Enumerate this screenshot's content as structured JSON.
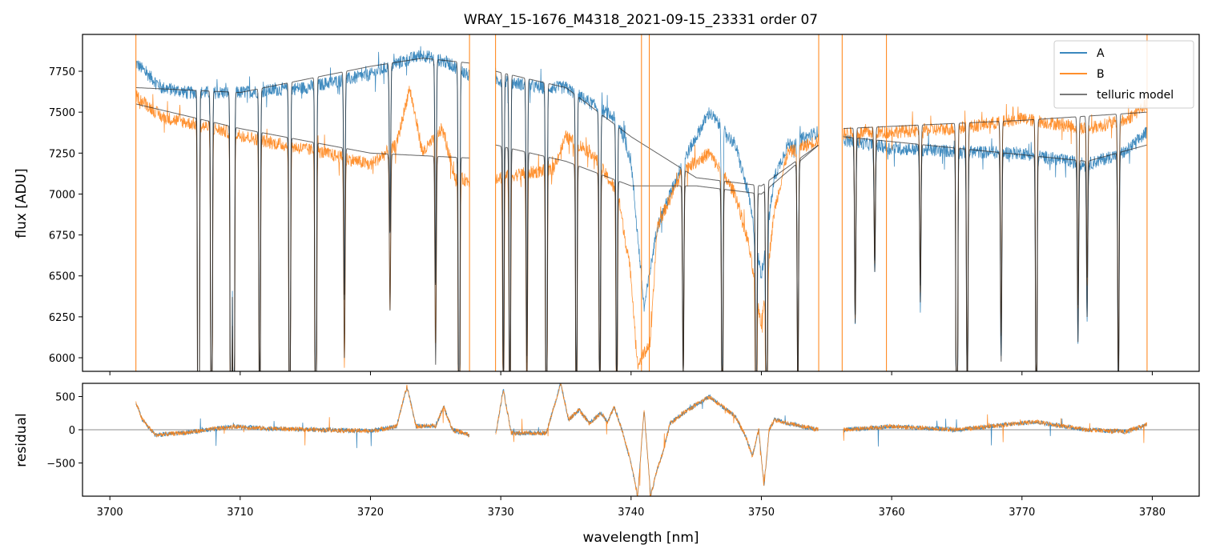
{
  "chart_data": {
    "type": "line",
    "title": "WRAY_15-1676_M4318_2021-09-15_23331  order 07",
    "xlabel": "wavelength [nm]",
    "xlim": [
      3697.9,
      3783.6
    ],
    "xticks": [
      3700,
      3710,
      3720,
      3730,
      3740,
      3750,
      3760,
      3770,
      3780
    ],
    "colors": {
      "A": "#1f77b4",
      "B": "#ff7f0e",
      "model": "#555555",
      "zero": "#666666"
    },
    "legend": {
      "placement": "top-right",
      "entries": [
        "A",
        "B",
        "telluric model"
      ]
    },
    "top_panel": {
      "ylabel": "flux [ADU]",
      "ylim": [
        5917,
        7975
      ],
      "yticks": [
        6000,
        6250,
        6500,
        6750,
        7000,
        7250,
        7500,
        7750
      ]
    },
    "bottom_panel": {
      "ylabel": "residual",
      "ylim": [
        -1000,
        699
      ],
      "yticks": [
        -500,
        0,
        500
      ],
      "ytick_labels": [
        "−500",
        "0",
        "500"
      ]
    },
    "segments": [
      [
        3702.0,
        3727.6
      ],
      [
        3729.6,
        3754.4
      ],
      [
        3756.3,
        3779.6
      ]
    ],
    "series": [
      {
        "name": "A",
        "continuum": [
          [
            3702,
            7800
          ],
          [
            3704,
            7650
          ],
          [
            3706,
            7620
          ],
          [
            3710,
            7620
          ],
          [
            3715,
            7650
          ],
          [
            3720,
            7730
          ],
          [
            3722,
            7800
          ],
          [
            3724,
            7850
          ],
          [
            3726,
            7800
          ],
          [
            3727.6,
            7720
          ],
          [
            3729.6,
            7700
          ],
          [
            3733,
            7650
          ],
          [
            3735,
            7650
          ],
          [
            3737,
            7550
          ],
          [
            3739,
            7450
          ],
          [
            3740,
            7200
          ],
          [
            3741,
            6300
          ],
          [
            3742,
            6800
          ],
          [
            3744,
            7200
          ],
          [
            3746,
            7500
          ],
          [
            3748,
            7300
          ],
          [
            3749,
            7000
          ],
          [
            3750,
            6500
          ],
          [
            3751,
            7100
          ],
          [
            3752,
            7300
          ],
          [
            3754.4,
            7380
          ],
          [
            3756.3,
            7330
          ],
          [
            3760,
            7280
          ],
          [
            3765,
            7260
          ],
          [
            3770,
            7250
          ],
          [
            3775,
            7180
          ],
          [
            3778,
            7260
          ],
          [
            3779.6,
            7380
          ]
        ]
      },
      {
        "name": "B",
        "continuum": [
          [
            3702,
            7600
          ],
          [
            3704,
            7470
          ],
          [
            3708,
            7400
          ],
          [
            3712,
            7320
          ],
          [
            3716,
            7260
          ],
          [
            3720,
            7180
          ],
          [
            3722,
            7300
          ],
          [
            3723,
            7650
          ],
          [
            3724,
            7250
          ],
          [
            3725.5,
            7400
          ],
          [
            3726.5,
            7100
          ],
          [
            3727.6,
            7080
          ],
          [
            3729.6,
            7100
          ],
          [
            3734,
            7150
          ],
          [
            3735,
            7350
          ],
          [
            3737,
            7250
          ],
          [
            3739,
            7000
          ],
          [
            3740,
            6500
          ],
          [
            3740.5,
            5950
          ],
          [
            3741.5,
            6100
          ],
          [
            3742,
            6800
          ],
          [
            3744,
            7150
          ],
          [
            3746,
            7250
          ],
          [
            3748,
            7000
          ],
          [
            3749,
            6700
          ],
          [
            3750,
            6200
          ],
          [
            3751,
            6900
          ],
          [
            3752,
            7250
          ],
          [
            3754.4,
            7330
          ],
          [
            3756.3,
            7370
          ],
          [
            3760,
            7380
          ],
          [
            3765,
            7400
          ],
          [
            3770,
            7460
          ],
          [
            3775,
            7400
          ],
          [
            3778,
            7450
          ],
          [
            3779.6,
            7550
          ]
        ]
      },
      {
        "name": "telluric model A",
        "continuum": [
          [
            3702,
            7650
          ],
          [
            3710,
            7620
          ],
          [
            3720,
            7780
          ],
          [
            3724,
            7830
          ],
          [
            3727.6,
            7800
          ],
          [
            3729.6,
            7750
          ],
          [
            3735,
            7650
          ],
          [
            3740,
            7350
          ],
          [
            3745,
            7100
          ],
          [
            3750,
            7050
          ],
          [
            3754.4,
            7300
          ],
          [
            3756.3,
            7350
          ],
          [
            3765,
            7280
          ],
          [
            3775,
            7200
          ],
          [
            3779.6,
            7300
          ]
        ]
      },
      {
        "name": "telluric model B",
        "continuum": [
          [
            3702,
            7550
          ],
          [
            3710,
            7400
          ],
          [
            3720,
            7250
          ],
          [
            3727.6,
            7220
          ],
          [
            3729.6,
            7300
          ],
          [
            3735,
            7200
          ],
          [
            3740,
            7050
          ],
          [
            3745,
            7050
          ],
          [
            3750,
            7000
          ],
          [
            3754.4,
            7300
          ],
          [
            3756.3,
            7400
          ],
          [
            3770,
            7450
          ],
          [
            3779.6,
            7500
          ]
        ]
      }
    ],
    "telluric_lines": [
      [
        3706.8,
        0.35
      ],
      [
        3707.8,
        0.25
      ],
      [
        3709.3,
        0.3
      ],
      [
        3709.5,
        0.3
      ],
      [
        3711.5,
        0.15
      ],
      [
        3713.8,
        0.2
      ],
      [
        3715.8,
        0.25
      ],
      [
        3718,
        0.08
      ],
      [
        3721.5,
        0.06
      ],
      [
        3725,
        0.08
      ],
      [
        3726.8,
        0.25
      ],
      [
        3730.2,
        0.12
      ],
      [
        3730.7,
        0.15
      ],
      [
        3732,
        0.1
      ],
      [
        3733.5,
        0.22
      ],
      [
        3735.8,
        0.15
      ],
      [
        3737.6,
        0.12
      ],
      [
        3738.9,
        0.12
      ],
      [
        3744,
        0.08
      ],
      [
        3747,
        0.12
      ],
      [
        3749.6,
        0.15
      ],
      [
        3750.4,
        0.2
      ],
      [
        3752.8,
        0.1
      ],
      [
        3757.2,
        0.07
      ],
      [
        3758.7,
        0.05
      ],
      [
        3762.2,
        0.06
      ],
      [
        3765,
        0.25
      ],
      [
        3765.8,
        0.12
      ],
      [
        3768.4,
        0.08
      ],
      [
        3771.1,
        0.15
      ],
      [
        3774.3,
        0.07
      ],
      [
        3775,
        0.06
      ],
      [
        3777.4,
        0.1
      ]
    ],
    "residual_profile": [
      [
        3702,
        400
      ],
      [
        3702.5,
        150
      ],
      [
        3703.5,
        -80
      ],
      [
        3706,
        -40
      ],
      [
        3709.5,
        50
      ],
      [
        3712,
        20
      ],
      [
        3720,
        -20
      ],
      [
        3722,
        50
      ],
      [
        3722.8,
        650
      ],
      [
        3723.5,
        50
      ],
      [
        3725,
        60
      ],
      [
        3725.6,
        350
      ],
      [
        3726.3,
        0
      ],
      [
        3727.6,
        -80
      ],
      [
        3729.6,
        -80
      ],
      [
        3730.2,
        600
      ],
      [
        3730.8,
        -50
      ],
      [
        3733.5,
        -50
      ],
      [
        3734.6,
        700
      ],
      [
        3735.2,
        150
      ],
      [
        3736,
        300
      ],
      [
        3736.8,
        100
      ],
      [
        3737.7,
        250
      ],
      [
        3738.2,
        120
      ],
      [
        3738.7,
        350
      ],
      [
        3739.3,
        0
      ],
      [
        3740,
        -500
      ],
      [
        3740.5,
        -1000
      ],
      [
        3741,
        300
      ],
      [
        3741.5,
        -1000
      ],
      [
        3742,
        -600
      ],
      [
        3742.5,
        -300
      ],
      [
        3743,
        100
      ],
      [
        3744,
        250
      ],
      [
        3746,
        500
      ],
      [
        3748,
        200
      ],
      [
        3748.8,
        -100
      ],
      [
        3749.3,
        -400
      ],
      [
        3749.8,
        0
      ],
      [
        3750.2,
        -850
      ],
      [
        3750.6,
        0
      ],
      [
        3751,
        150
      ],
      [
        3752,
        100
      ],
      [
        3754.4,
        0
      ],
      [
        3756.3,
        0
      ],
      [
        3760,
        50
      ],
      [
        3765,
        0
      ],
      [
        3771,
        120
      ],
      [
        3775,
        0
      ],
      [
        3778,
        -30
      ],
      [
        3779.6,
        80
      ]
    ],
    "spikes": [
      3702.0,
      3727.6,
      3729.6,
      3740.8,
      3741.4,
      3754.4,
      3756.2,
      3759.6,
      3779.6
    ]
  }
}
